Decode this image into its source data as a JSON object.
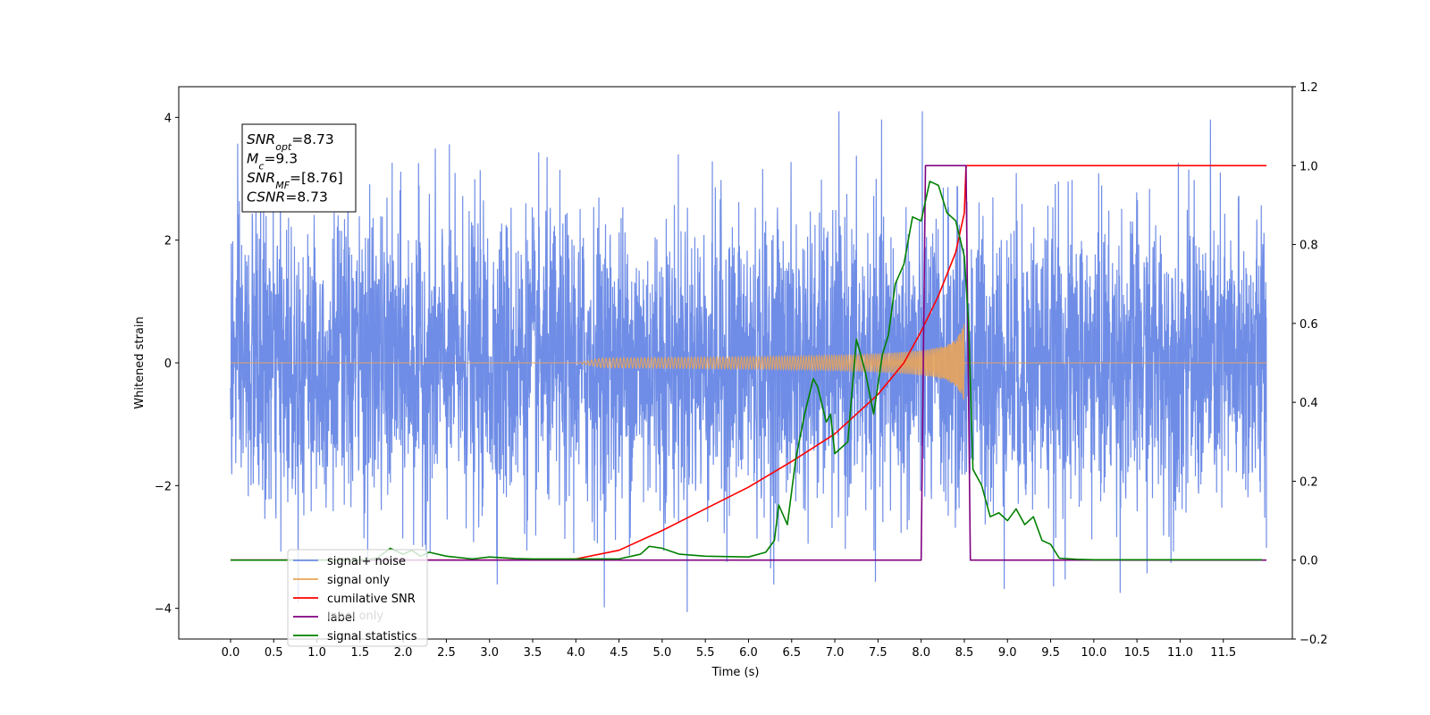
{
  "chart_data": {
    "type": "line",
    "xlabel": "Time (s)",
    "ylabel": "Whitened strain",
    "xlim": [
      -0.6,
      12.3
    ],
    "ylim": [
      -4.5,
      4.5
    ],
    "y2lim": [
      -0.2,
      1.2
    ],
    "xticks": [
      "0.0",
      "0.5",
      "1.0",
      "1.5",
      "2.0",
      "2.5",
      "3.0",
      "3.5",
      "4.0",
      "4.5",
      "5.0",
      "5.5",
      "6.0",
      "6.5",
      "7.0",
      "7.5",
      "8.0",
      "8.5",
      "9.0",
      "9.5",
      "10.0",
      "10.5",
      "11.0",
      "11.5"
    ],
    "xtick_values": [
      0,
      0.5,
      1,
      1.5,
      2,
      2.5,
      3,
      3.5,
      4,
      4.5,
      5,
      5.5,
      6,
      6.5,
      7,
      7.5,
      8,
      8.5,
      9,
      9.5,
      10,
      10.5,
      11,
      11.5
    ],
    "yticks": [
      "−4",
      "−2",
      "0",
      "2",
      "4"
    ],
    "ytick_values": [
      -4,
      -2,
      0,
      2,
      4
    ],
    "y2ticks": [
      "−0.2",
      "0.0",
      "0.2",
      "0.4",
      "0.6",
      "0.8",
      "1.0",
      "1.2"
    ],
    "y2tick_values": [
      -0.2,
      0,
      0.2,
      0.4,
      0.6,
      0.8,
      1.0,
      1.2
    ],
    "grid": false,
    "legend_placement": "lower-left",
    "annotation": {
      "lines": [
        {
          "main": "SNR",
          "sub": "opt",
          "rest": "=8.73"
        },
        {
          "main": "M",
          "sub": "c",
          "rest": "=9.3"
        },
        {
          "main": "SNR",
          "sub": "MF",
          "rest": "=[8.76]"
        },
        {
          "main": "CSNR",
          "sub": "",
          "rest": "=8.73"
        }
      ]
    },
    "series": [
      {
        "name": "signal+ noise",
        "axis": "left",
        "color": "#6f8de6",
        "kind": "noise",
        "x_range": [
          0.0,
          12.0
        ],
        "noise_std": 1.2,
        "typical_peak": 4.1
      },
      {
        "name": "signal only",
        "axis": "left",
        "color": "#e8a45a",
        "kind": "chirp",
        "t_start": 4.0,
        "t_end": 8.5,
        "peak_amplitude": 0.75
      },
      {
        "name": "cumilative SNR",
        "axis": "right",
        "color": "#ff0000",
        "x": [
          0,
          3.5,
          4.0,
          4.5,
          5.0,
          5.5,
          6.0,
          6.5,
          7.0,
          7.5,
          7.8,
          8.0,
          8.2,
          8.4,
          8.5,
          8.52,
          12.0
        ],
        "y": [
          0,
          0,
          0.003,
          0.025,
          0.075,
          0.13,
          0.185,
          0.25,
          0.32,
          0.42,
          0.5,
          0.58,
          0.67,
          0.78,
          0.88,
          1.0,
          1.0
        ]
      },
      {
        "name": "label",
        "axis": "right",
        "color": "#800080",
        "x": [
          0,
          8.0,
          8.05,
          8.52,
          8.57,
          12.0
        ],
        "y": [
          0,
          0,
          1,
          1,
          0,
          0
        ]
      },
      {
        "name": "signal statistics",
        "axis": "right",
        "color": "#008000",
        "x": [
          0,
          0.5,
          1.0,
          1.5,
          1.7,
          1.85,
          2.0,
          2.1,
          2.2,
          2.3,
          2.5,
          2.8,
          3.0,
          3.3,
          3.5,
          4.0,
          4.5,
          4.75,
          4.85,
          5.0,
          5.2,
          5.5,
          6.0,
          6.2,
          6.3,
          6.35,
          6.45,
          6.55,
          6.65,
          6.75,
          6.8,
          6.9,
          6.95,
          7.0,
          7.05,
          7.15,
          7.25,
          7.35,
          7.45,
          7.55,
          7.62,
          7.7,
          7.8,
          7.9,
          8.0,
          8.1,
          8.2,
          8.3,
          8.4,
          8.5,
          8.55,
          8.6,
          8.7,
          8.8,
          8.9,
          9.0,
          9.1,
          9.2,
          9.3,
          9.4,
          9.5,
          9.6,
          9.8,
          10.0,
          10.5,
          11.0,
          11.5,
          11.95
        ],
        "y": [
          0,
          0,
          0,
          0,
          0.005,
          0.03,
          0.015,
          0.025,
          0.01,
          0.02,
          0.01,
          0.003,
          0.008,
          0.004,
          0.003,
          0.003,
          0.003,
          0.015,
          0.035,
          0.03,
          0.015,
          0.01,
          0.008,
          0.02,
          0.05,
          0.14,
          0.09,
          0.26,
          0.37,
          0.46,
          0.44,
          0.35,
          0.37,
          0.27,
          0.28,
          0.3,
          0.56,
          0.48,
          0.37,
          0.52,
          0.57,
          0.7,
          0.75,
          0.87,
          0.86,
          0.96,
          0.95,
          0.88,
          0.86,
          0.77,
          0.6,
          0.23,
          0.19,
          0.11,
          0.12,
          0.1,
          0.13,
          0.09,
          0.11,
          0.05,
          0.04,
          0.005,
          0.002,
          0.001,
          0.001,
          0.001,
          0.001,
          0.001
        ]
      },
      {
        "name": "label only",
        "axis": "right",
        "color": "#c0c0c0",
        "legend_only": true
      }
    ]
  }
}
